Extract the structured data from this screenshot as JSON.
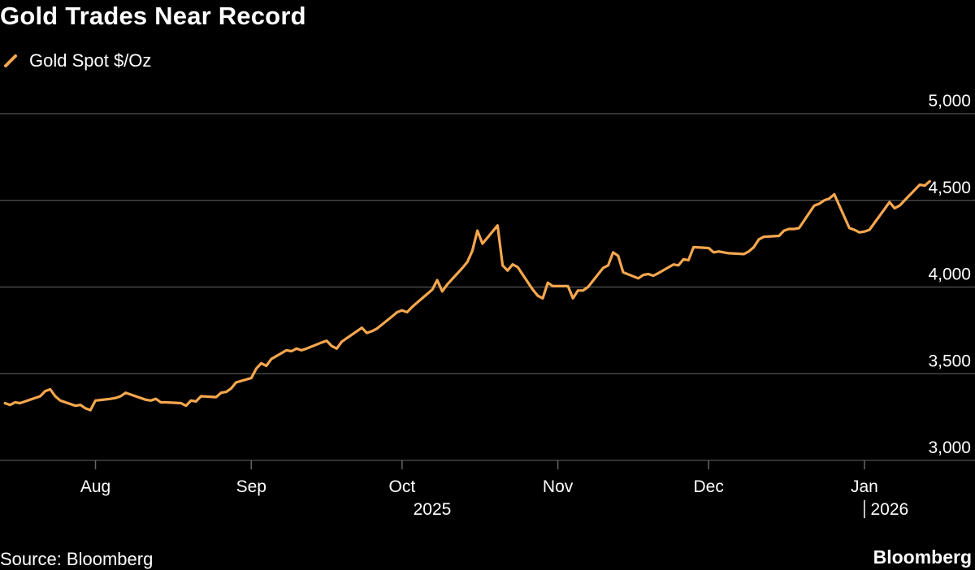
{
  "chart_data": {
    "type": "line",
    "title": "Gold Trades Near Record",
    "series": [
      {
        "name": "Gold Spot $/Oz",
        "points": [
          [
            "2025-07-14",
            3330
          ],
          [
            "2025-07-15",
            3320
          ],
          [
            "2025-07-16",
            3335
          ],
          [
            "2025-07-17",
            3330
          ],
          [
            "2025-07-18",
            3340
          ],
          [
            "2025-07-21",
            3370
          ],
          [
            "2025-07-22",
            3400
          ],
          [
            "2025-07-23",
            3410
          ],
          [
            "2025-07-24",
            3370
          ],
          [
            "2025-07-25",
            3345
          ],
          [
            "2025-07-28",
            3315
          ],
          [
            "2025-07-29",
            3320
          ],
          [
            "2025-07-30",
            3300
          ],
          [
            "2025-07-31",
            3290
          ],
          [
            "2025-08-01",
            3345
          ],
          [
            "2025-08-04",
            3355
          ],
          [
            "2025-08-05",
            3360
          ],
          [
            "2025-08-06",
            3370
          ],
          [
            "2025-08-07",
            3390
          ],
          [
            "2025-08-08",
            3380
          ],
          [
            "2025-08-11",
            3350
          ],
          [
            "2025-08-12",
            3345
          ],
          [
            "2025-08-13",
            3355
          ],
          [
            "2025-08-14",
            3335
          ],
          [
            "2025-08-15",
            3335
          ],
          [
            "2025-08-18",
            3330
          ],
          [
            "2025-08-19",
            3315
          ],
          [
            "2025-08-20",
            3345
          ],
          [
            "2025-08-21",
            3340
          ],
          [
            "2025-08-22",
            3370
          ],
          [
            "2025-08-25",
            3365
          ],
          [
            "2025-08-26",
            3390
          ],
          [
            "2025-08-27",
            3395
          ],
          [
            "2025-08-28",
            3415
          ],
          [
            "2025-08-29",
            3450
          ],
          [
            "2025-09-01",
            3475
          ],
          [
            "2025-09-02",
            3530
          ],
          [
            "2025-09-03",
            3560
          ],
          [
            "2025-09-04",
            3545
          ],
          [
            "2025-09-05",
            3585
          ],
          [
            "2025-09-08",
            3635
          ],
          [
            "2025-09-09",
            3630
          ],
          [
            "2025-09-10",
            3645
          ],
          [
            "2025-09-11",
            3635
          ],
          [
            "2025-09-12",
            3645
          ],
          [
            "2025-09-15",
            3680
          ],
          [
            "2025-09-16",
            3690
          ],
          [
            "2025-09-17",
            3660
          ],
          [
            "2025-09-18",
            3645
          ],
          [
            "2025-09-19",
            3685
          ],
          [
            "2025-09-22",
            3745
          ],
          [
            "2025-09-23",
            3765
          ],
          [
            "2025-09-24",
            3735
          ],
          [
            "2025-09-25",
            3745
          ],
          [
            "2025-09-26",
            3760
          ],
          [
            "2025-09-29",
            3830
          ],
          [
            "2025-09-30",
            3855
          ],
          [
            "2025-10-01",
            3865
          ],
          [
            "2025-10-02",
            3855
          ],
          [
            "2025-10-03",
            3885
          ],
          [
            "2025-10-06",
            3960
          ],
          [
            "2025-10-07",
            3985
          ],
          [
            "2025-10-08",
            4040
          ],
          [
            "2025-10-09",
            3975
          ],
          [
            "2025-10-10",
            4015
          ],
          [
            "2025-10-13",
            4110
          ],
          [
            "2025-10-14",
            4145
          ],
          [
            "2025-10-15",
            4210
          ],
          [
            "2025-10-16",
            4325
          ],
          [
            "2025-10-17",
            4250
          ],
          [
            "2025-10-20",
            4355
          ],
          [
            "2025-10-21",
            4125
          ],
          [
            "2025-10-22",
            4095
          ],
          [
            "2025-10-23",
            4130
          ],
          [
            "2025-10-24",
            4115
          ],
          [
            "2025-10-27",
            3985
          ],
          [
            "2025-10-28",
            3950
          ],
          [
            "2025-10-29",
            3935
          ],
          [
            "2025-10-30",
            4025
          ],
          [
            "2025-10-31",
            4005
          ],
          [
            "2025-11-03",
            4005
          ],
          [
            "2025-11-04",
            3935
          ],
          [
            "2025-11-05",
            3980
          ],
          [
            "2025-11-06",
            3980
          ],
          [
            "2025-11-07",
            4000
          ],
          [
            "2025-11-10",
            4110
          ],
          [
            "2025-11-11",
            4125
          ],
          [
            "2025-11-12",
            4200
          ],
          [
            "2025-11-13",
            4180
          ],
          [
            "2025-11-14",
            4085
          ],
          [
            "2025-11-17",
            4050
          ],
          [
            "2025-11-18",
            4070
          ],
          [
            "2025-11-19",
            4075
          ],
          [
            "2025-11-20",
            4065
          ],
          [
            "2025-11-21",
            4080
          ],
          [
            "2025-11-24",
            4130
          ],
          [
            "2025-11-25",
            4125
          ],
          [
            "2025-11-26",
            4160
          ],
          [
            "2025-11-27",
            4155
          ],
          [
            "2025-11-28",
            4230
          ],
          [
            "2025-12-01",
            4225
          ],
          [
            "2025-12-02",
            4200
          ],
          [
            "2025-12-03",
            4205
          ],
          [
            "2025-12-04",
            4200
          ],
          [
            "2025-12-05",
            4195
          ],
          [
            "2025-12-08",
            4190
          ],
          [
            "2025-12-09",
            4205
          ],
          [
            "2025-12-10",
            4230
          ],
          [
            "2025-12-11",
            4275
          ],
          [
            "2025-12-12",
            4290
          ],
          [
            "2025-12-15",
            4295
          ],
          [
            "2025-12-16",
            4325
          ],
          [
            "2025-12-17",
            4335
          ],
          [
            "2025-12-18",
            4335
          ],
          [
            "2025-12-19",
            4340
          ],
          [
            "2025-12-22",
            4470
          ],
          [
            "2025-12-23",
            4480
          ],
          [
            "2025-12-24",
            4500
          ],
          [
            "2025-12-25",
            4510
          ],
          [
            "2025-12-26",
            4535
          ],
          [
            "2025-12-29",
            4340
          ],
          [
            "2025-12-30",
            4330
          ],
          [
            "2025-12-31",
            4315
          ],
          [
            "2026-01-01",
            4320
          ],
          [
            "2026-01-02",
            4330
          ],
          [
            "2026-01-05",
            4450
          ],
          [
            "2026-01-06",
            4490
          ],
          [
            "2026-01-07",
            4455
          ],
          [
            "2026-01-08",
            4470
          ],
          [
            "2026-01-09",
            4500
          ],
          [
            "2026-01-12",
            4590
          ],
          [
            "2026-01-13",
            4585
          ],
          [
            "2026-01-14",
            4610
          ]
        ]
      }
    ],
    "ylim": [
      3000,
      5000
    ],
    "y_ticks": [
      3000,
      3500,
      4000,
      4500,
      5000
    ],
    "y_tick_labels": [
      "3,000",
      "3,500",
      "4,000",
      "4,500",
      "5,000"
    ],
    "y_axis_side": "right",
    "x_ticks": [
      {
        "date": "2025-08-01",
        "label": "Aug"
      },
      {
        "date": "2025-09-01",
        "label": "Sep"
      },
      {
        "date": "2025-10-01",
        "label": "Oct"
      },
      {
        "date": "2025-11-01",
        "label": "Nov"
      },
      {
        "date": "2025-12-01",
        "label": "Dec"
      },
      {
        "date": "2026-01-01",
        "label": "Jan"
      }
    ],
    "x_year_labels": [
      {
        "date": "2025-10-07",
        "label": "2025"
      },
      {
        "date": "2026-01-06",
        "label": "2026"
      }
    ],
    "xlim": [
      "2025-07-13",
      "2026-01-23"
    ],
    "grid": true,
    "legend": "top-left",
    "colors": {
      "line": "#f6a74e",
      "grid": "#666666",
      "background": "#000000",
      "text": "#ffffff"
    }
  },
  "footer": {
    "source": "Source: Bloomberg",
    "brand": "Bloomberg"
  }
}
